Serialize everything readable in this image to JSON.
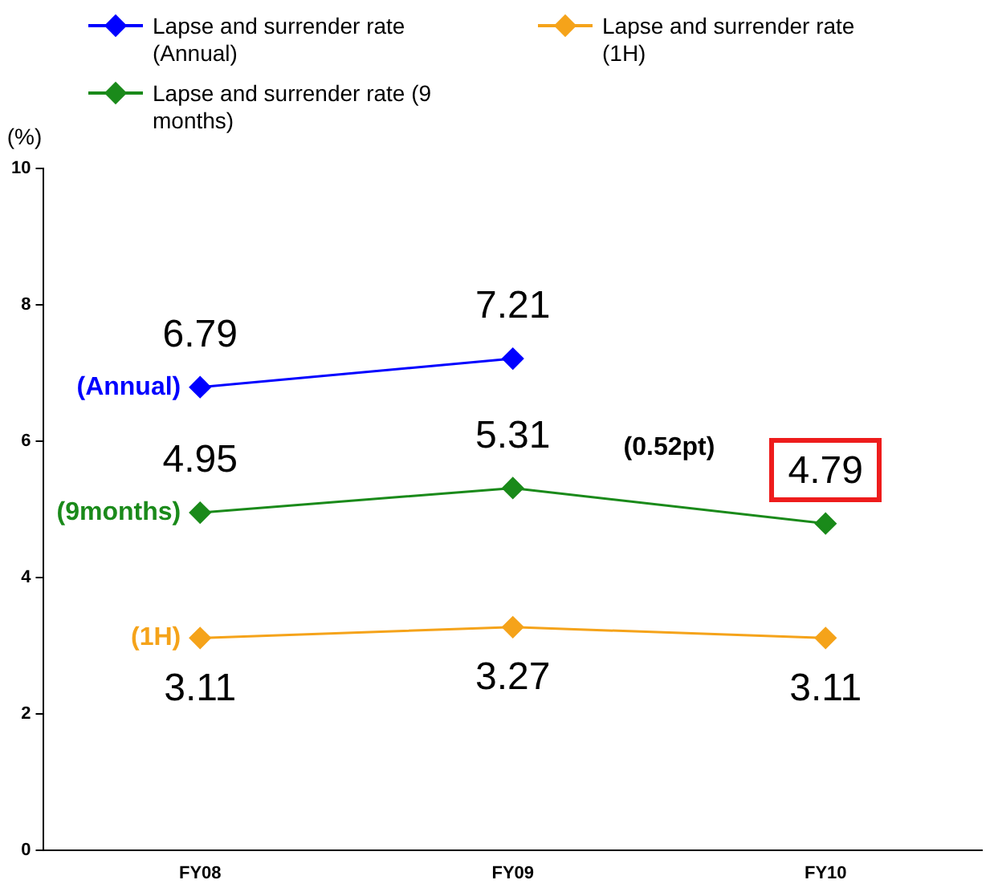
{
  "chart_data": {
    "type": "line",
    "categories": [
      "FY08",
      "FY09",
      "FY10"
    ],
    "series": [
      {
        "name": "Lapse and surrender rate (Annual)",
        "color": "#0000ff",
        "values": [
          6.79,
          7.21,
          null
        ]
      },
      {
        "name": "Lapse and surrender rate (1H)",
        "color": "#f5a31a",
        "values": [
          3.11,
          3.27,
          3.11
        ]
      },
      {
        "name": "Lapse and surrender rate (9 months)",
        "color": "#1a8a1a",
        "values": [
          4.95,
          5.31,
          4.79
        ]
      }
    ],
    "ylabel": "(%)",
    "ylim": [
      0,
      10
    ],
    "yticks": [
      0,
      2,
      4,
      6,
      8,
      10
    ],
    "grid": false,
    "legend": "top",
    "marker": "diamond",
    "line_style": "solid",
    "data_labels": true,
    "annotations": [
      {
        "text": "(Annual)",
        "x": "FY08",
        "y": 6.79
      },
      {
        "text": "(9months)",
        "x": "FY08",
        "y": 4.95
      },
      {
        "text": "(1H)",
        "x": "FY08",
        "y": 3.11
      },
      "(0.52pt)"
    ]
  }
}
